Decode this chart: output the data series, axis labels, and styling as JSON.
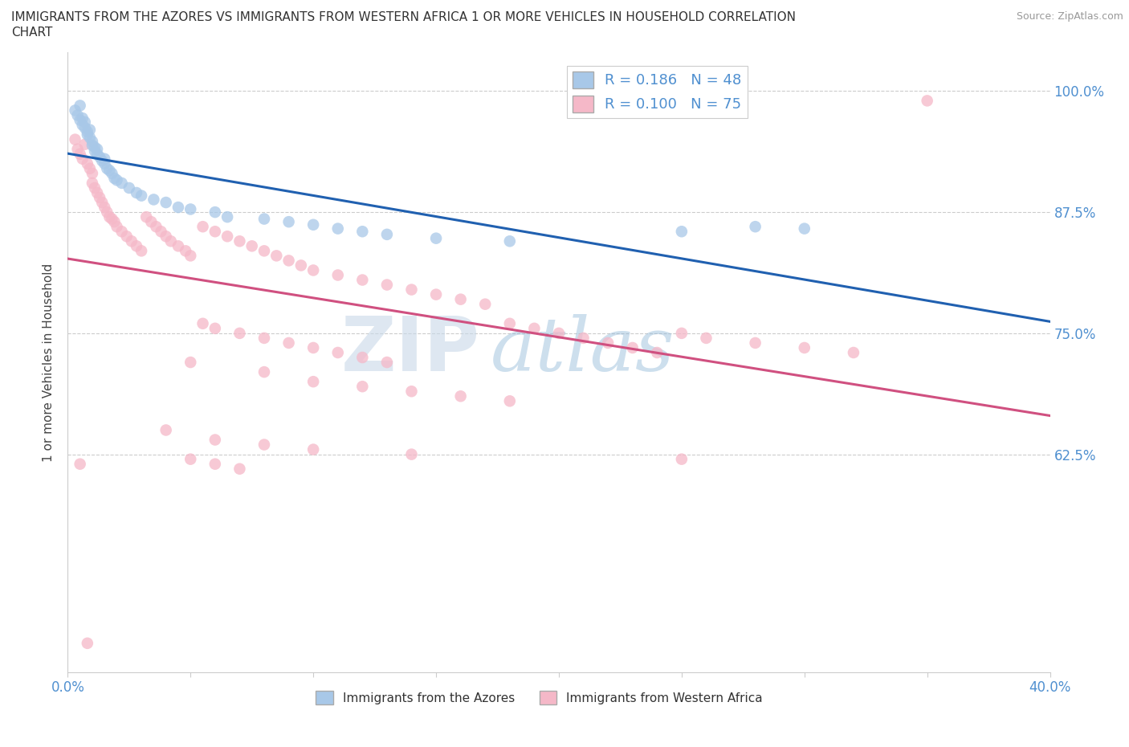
{
  "title_line1": "IMMIGRANTS FROM THE AZORES VS IMMIGRANTS FROM WESTERN AFRICA 1 OR MORE VEHICLES IN HOUSEHOLD CORRELATION",
  "title_line2": "CHART",
  "source_text": "Source: ZipAtlas.com",
  "ylabel": "1 or more Vehicles in Household",
  "xlim": [
    0.0,
    0.4
  ],
  "ylim": [
    0.4,
    1.04
  ],
  "azores_R": 0.186,
  "azores_N": 48,
  "western_africa_R": 0.1,
  "western_africa_N": 75,
  "azores_color": "#a8c8e8",
  "western_africa_color": "#f5b8c8",
  "azores_line_color": "#2060b0",
  "western_africa_line_color": "#d05080",
  "legend_label_azores": "Immigrants from the Azores",
  "legend_label_western_africa": "Immigrants from Western Africa",
  "watermark_zip": "ZIP",
  "watermark_atlas": "atlas",
  "background_color": "#ffffff",
  "grid_color": "#cccccc",
  "ytick_color": "#5090d0",
  "xtick_color": "#5090d0",
  "azores_x": [
    0.003,
    0.004,
    0.005,
    0.005,
    0.006,
    0.006,
    0.007,
    0.007,
    0.008,
    0.008,
    0.009,
    0.009,
    0.01,
    0.01,
    0.011,
    0.011,
    0.012,
    0.012,
    0.013,
    0.014,
    0.015,
    0.015,
    0.016,
    0.017,
    0.018,
    0.019,
    0.02,
    0.022,
    0.025,
    0.028,
    0.03,
    0.035,
    0.04,
    0.045,
    0.05,
    0.06,
    0.065,
    0.08,
    0.09,
    0.1,
    0.11,
    0.12,
    0.13,
    0.15,
    0.18,
    0.25,
    0.28,
    0.3
  ],
  "azores_y": [
    0.98,
    0.975,
    0.985,
    0.97,
    0.965,
    0.972,
    0.968,
    0.962,
    0.958,
    0.955,
    0.952,
    0.96,
    0.948,
    0.944,
    0.942,
    0.938,
    0.935,
    0.94,
    0.932,
    0.928,
    0.925,
    0.93,
    0.92,
    0.918,
    0.915,
    0.91,
    0.908,
    0.905,
    0.9,
    0.895,
    0.892,
    0.888,
    0.885,
    0.88,
    0.878,
    0.875,
    0.87,
    0.868,
    0.865,
    0.862,
    0.858,
    0.855,
    0.852,
    0.848,
    0.845,
    0.855,
    0.86,
    0.858
  ],
  "wa_x": [
    0.003,
    0.004,
    0.005,
    0.006,
    0.007,
    0.008,
    0.009,
    0.01,
    0.01,
    0.011,
    0.012,
    0.013,
    0.014,
    0.015,
    0.016,
    0.017,
    0.018,
    0.019,
    0.02,
    0.022,
    0.024,
    0.026,
    0.028,
    0.03,
    0.032,
    0.034,
    0.036,
    0.038,
    0.04,
    0.042,
    0.045,
    0.048,
    0.05,
    0.055,
    0.06,
    0.065,
    0.07,
    0.075,
    0.08,
    0.085,
    0.09,
    0.095,
    0.1,
    0.11,
    0.12,
    0.13,
    0.14,
    0.15,
    0.16,
    0.17,
    0.18,
    0.19,
    0.2,
    0.21,
    0.22,
    0.23,
    0.24,
    0.25,
    0.26,
    0.28,
    0.3,
    0.32,
    0.35,
    0.055,
    0.06,
    0.07,
    0.08,
    0.09,
    0.1,
    0.11,
    0.12,
    0.13,
    0.05,
    0.06,
    0.07
  ],
  "wa_y": [
    0.95,
    0.94,
    0.935,
    0.93,
    0.945,
    0.925,
    0.92,
    0.915,
    0.905,
    0.9,
    0.895,
    0.89,
    0.885,
    0.88,
    0.875,
    0.87,
    0.868,
    0.865,
    0.86,
    0.855,
    0.85,
    0.845,
    0.84,
    0.835,
    0.87,
    0.865,
    0.86,
    0.855,
    0.85,
    0.845,
    0.84,
    0.835,
    0.83,
    0.86,
    0.855,
    0.85,
    0.845,
    0.84,
    0.835,
    0.83,
    0.825,
    0.82,
    0.815,
    0.81,
    0.805,
    0.8,
    0.795,
    0.79,
    0.785,
    0.78,
    0.76,
    0.755,
    0.75,
    0.745,
    0.74,
    0.735,
    0.73,
    0.75,
    0.745,
    0.74,
    0.735,
    0.73,
    0.99,
    0.76,
    0.755,
    0.75,
    0.745,
    0.74,
    0.735,
    0.73,
    0.725,
    0.72,
    0.62,
    0.615,
    0.61
  ],
  "wa_low_x": [
    0.005,
    0.05,
    0.08,
    0.1,
    0.12,
    0.14,
    0.16,
    0.18
  ],
  "wa_low_y": [
    0.615,
    0.72,
    0.71,
    0.7,
    0.695,
    0.69,
    0.685,
    0.68
  ],
  "wa_vlow_x": [
    0.008,
    0.04,
    0.06,
    0.08,
    0.1,
    0.14,
    0.25
  ],
  "wa_vlow_y": [
    0.43,
    0.65,
    0.64,
    0.635,
    0.63,
    0.625,
    0.62
  ]
}
